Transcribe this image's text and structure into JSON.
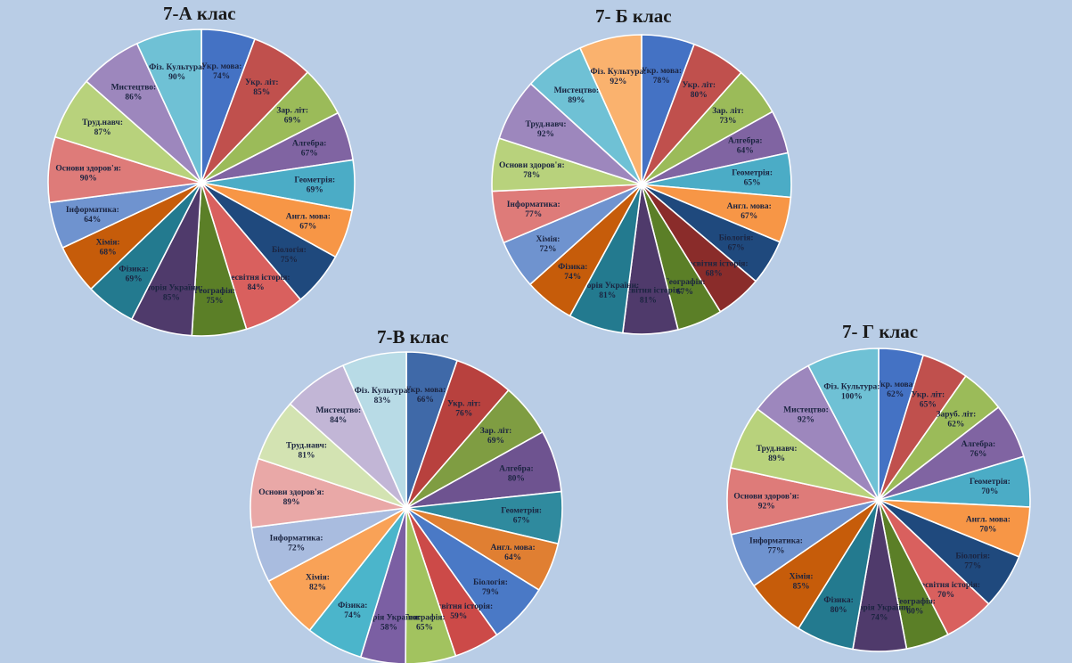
{
  "chart_data": [
    {
      "type": "pie",
      "title": "7-А клас",
      "slices": [
        {
          "label": "Укр. мова: 74%",
          "value": 74,
          "color": "#4472c4"
        },
        {
          "label": "Укр. літ: 85%",
          "value": 85,
          "color": "#c0504d"
        },
        {
          "label": "Зар. літ: 69%",
          "value": 69,
          "color": "#9bbb59"
        },
        {
          "label": "Алгебра: 67%",
          "value": 67,
          "color": "#8064a2"
        },
        {
          "label": "Геометрія: 69%",
          "value": 69,
          "color": "#4bacc6"
        },
        {
          "label": "Англ. мова: 67%",
          "value": 67,
          "color": "#f79646"
        },
        {
          "label": "Біологія: 75%",
          "value": 75,
          "color": "#1f497d"
        },
        {
          "label": "Всесвітня історія: 84%",
          "value": 84,
          "color": "#d9605e"
        },
        {
          "label": "Географія: 75%",
          "value": 75,
          "color": "#5b7f27"
        },
        {
          "label": "Історія України: 85%",
          "value": 85,
          "color": "#4f3a6b"
        },
        {
          "label": "Фізика: 69%",
          "value": 69,
          "color": "#237a8f"
        },
        {
          "label": "Хімія: 68%",
          "value": 68,
          "color": "#c65c0a"
        },
        {
          "label": "Інформатика: 64%",
          "value": 64,
          "color": "#6f93cf"
        },
        {
          "label": "Основи здоров'я: 90%",
          "value": 90,
          "color": "#de7b79"
        },
        {
          "label": "Труд.навч: 87%",
          "value": 87,
          "color": "#b8d27c"
        },
        {
          "label": "Мистецтво: 86%",
          "value": 86,
          "color": "#9d87bd"
        },
        {
          "label": "Фіз. Культура: 90%",
          "value": 90,
          "color": "#6fc1d5"
        }
      ]
    },
    {
      "type": "pie",
      "title": "7- Б клас",
      "slices": [
        {
          "label": "Укр. мова: 78%",
          "value": 78,
          "color": "#4472c4"
        },
        {
          "label": "Укр. літ: 80%",
          "value": 80,
          "color": "#c0504d"
        },
        {
          "label": "Зар. літ: 73%",
          "value": 73,
          "color": "#9bbb59"
        },
        {
          "label": "Алгебра: 64%",
          "value": 64,
          "color": "#8064a2"
        },
        {
          "label": "Геометрія: 65%",
          "value": 65,
          "color": "#4bacc6"
        },
        {
          "label": "Англ. мова: 67%",
          "value": 67,
          "color": "#f79646"
        },
        {
          "label": "Біологія: 67%",
          "value": 67,
          "color": "#1f497d"
        },
        {
          "label": "Всесвітня історія: 68%",
          "value": 68,
          "color": "#8a2c2a"
        },
        {
          "label": "Географія: 67%",
          "value": 67,
          "color": "#5b7f27"
        },
        {
          "label": "Всесвітня історія: 81%",
          "value": 81,
          "color": "#4f3a6b"
        },
        {
          "label": "Історія України: 81%",
          "value": 81,
          "color": "#237a8f"
        },
        {
          "label": "Фізика: 74%",
          "value": 74,
          "color": "#c65c0a"
        },
        {
          "label": "Хімія: 72%",
          "value": 72,
          "color": "#6f93cf"
        },
        {
          "label": "Інформатика: 77%",
          "value": 77,
          "color": "#de7b79"
        },
        {
          "label": "Основи здоров'я: 78%",
          "value": 78,
          "color": "#b8d27c"
        },
        {
          "label": "Труд.навч: 92%",
          "value": 92,
          "color": "#9d87bd"
        },
        {
          "label": "Мистецтво: 89%",
          "value": 89,
          "color": "#6fc1d5"
        },
        {
          "label": "Фіз. Культура: 92%",
          "value": 92,
          "color": "#fab26e"
        }
      ]
    },
    {
      "type": "pie",
      "title": "7-В клас",
      "slices": [
        {
          "label": "Укр. мова: 66%",
          "value": 66,
          "color": "#3f69a8"
        },
        {
          "label": "Укр. літ: 76%",
          "value": 76,
          "color": "#b8413e"
        },
        {
          "label": "Зар. літ: 69%",
          "value": 69,
          "color": "#7f9d42"
        },
        {
          "label": "Алгебра: 80%",
          "value": 80,
          "color": "#6e5390"
        },
        {
          "label": "Геометрія: 67%",
          "value": 67,
          "color": "#2f8a9e"
        },
        {
          "label": "Англ. мова: 64%",
          "value": 64,
          "color": "#e07f32"
        },
        {
          "label": "Біологія: 79%",
          "value": 79,
          "color": "#4a79c6"
        },
        {
          "label": "Всесвітня історія: 59%",
          "value": 59,
          "color": "#cc4a48"
        },
        {
          "label": "Географія: 65%",
          "value": 65,
          "color": "#a2c35f"
        },
        {
          "label": "Історія України: 58%",
          "value": 58,
          "color": "#7b5fa3"
        },
        {
          "label": "Фізика: 74%",
          "value": 74,
          "color": "#4bb5cb"
        },
        {
          "label": "Хімія: 82%",
          "value": 82,
          "color": "#f9a257"
        },
        {
          "label": "Інформатика: 72%",
          "value": 72,
          "color": "#a9bcdf"
        },
        {
          "label": "Основи здоров'я: 89%",
          "value": 89,
          "color": "#e9a8a7"
        },
        {
          "label": "Труд.навч: 81%",
          "value": 81,
          "color": "#d3e3b2"
        },
        {
          "label": "Мистецтво: 84%",
          "value": 84,
          "color": "#c2b6d6"
        },
        {
          "label": "Фіз. Культура: 83%",
          "value": 83,
          "color": "#b8dbe6"
        }
      ]
    },
    {
      "type": "pie",
      "title": "7- Г клас",
      "slices": [
        {
          "label": "Укр. мова: 62%",
          "value": 62,
          "color": "#4472c4"
        },
        {
          "label": "Укр. літ: 65%",
          "value": 65,
          "color": "#c0504d"
        },
        {
          "label": "Заруб. літ: 62%",
          "value": 62,
          "color": "#9bbb59"
        },
        {
          "label": "Алгебра: 76%",
          "value": 76,
          "color": "#8064a2"
        },
        {
          "label": "Геометрія: 70%",
          "value": 70,
          "color": "#4bacc6"
        },
        {
          "label": "Англ. мова: 70%",
          "value": 70,
          "color": "#f79646"
        },
        {
          "label": "Біологія: 77%",
          "value": 77,
          "color": "#1f497d"
        },
        {
          "label": "Всесвітня історія: 70%",
          "value": 70,
          "color": "#d9605e"
        },
        {
          "label": "Географія: 60%",
          "value": 60,
          "color": "#5b7f27"
        },
        {
          "label": "Історія України: 74%",
          "value": 74,
          "color": "#4f3a6b"
        },
        {
          "label": "Фізика: 80%",
          "value": 80,
          "color": "#237a8f"
        },
        {
          "label": "Хімія: 85%",
          "value": 85,
          "color": "#c65c0a"
        },
        {
          "label": "Інформатика: 77%",
          "value": 77,
          "color": "#6f93cf"
        },
        {
          "label": "Основи здоров'я: 92%",
          "value": 92,
          "color": "#de7b79"
        },
        {
          "label": "Труд.навч: 89%",
          "value": 89,
          "color": "#b8d27c"
        },
        {
          "label": "Мистецтво: 92%",
          "value": 92,
          "color": "#9d87bd"
        },
        {
          "label": "Фіз. Культура: 100%",
          "value": 100,
          "color": "#6fc1d5"
        }
      ]
    }
  ]
}
